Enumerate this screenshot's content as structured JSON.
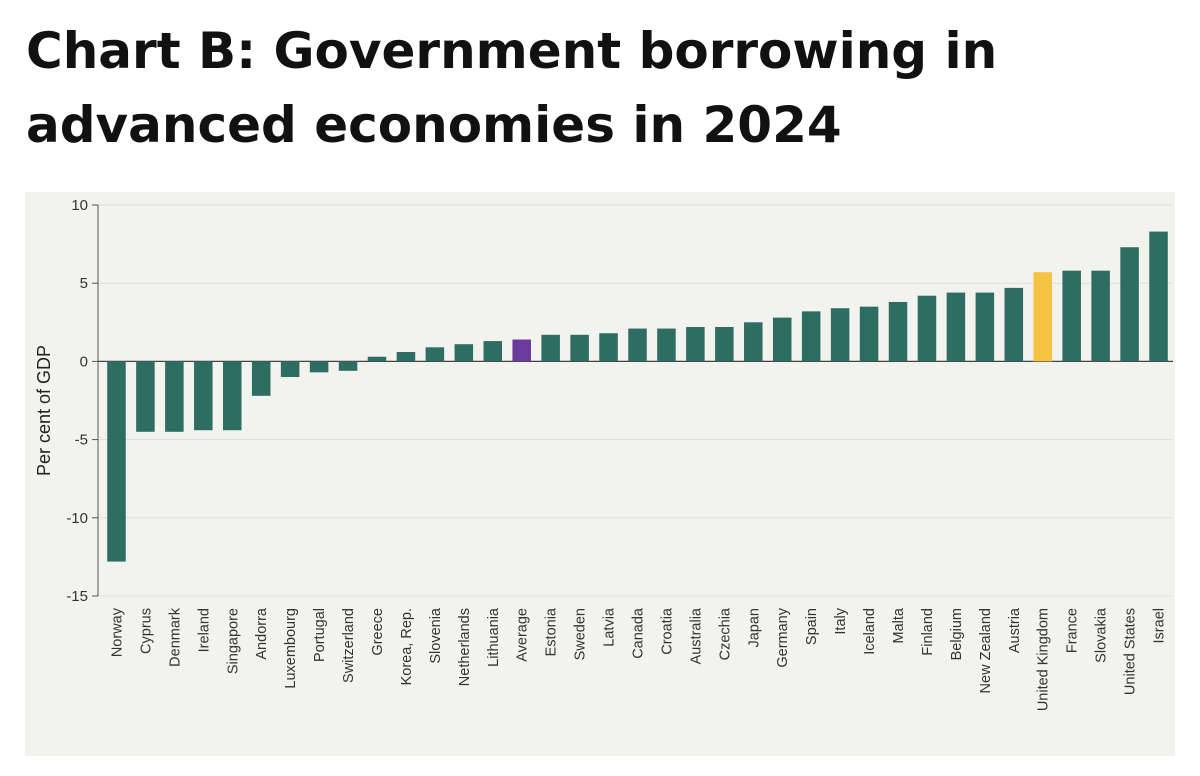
{
  "header": {
    "title": "Chart B: Government borrowing in advanced economies in 2024"
  },
  "colors": {
    "default_bar": "#2e6e62",
    "average_bar": "#6a3a9c",
    "highlight_bar": "#f5c242",
    "panel_background": "#f2f2ef",
    "gridline": "#dedede"
  },
  "chart_data": {
    "type": "bar",
    "title": "Chart B: Government borrowing in advanced economies in 2024",
    "xlabel": "",
    "ylabel": "Per cent of GDP",
    "ylim": [
      -15,
      10
    ],
    "yticks": [
      10,
      5,
      0,
      -5,
      -10,
      -15
    ],
    "grid": true,
    "legend": "none",
    "categories": [
      "Norway",
      "Cyprus",
      "Denmark",
      "Ireland",
      "Singapore",
      "Andorra",
      "Luxembourg",
      "Portugal",
      "Switzerland",
      "Greece",
      "Korea, Rep.",
      "Slovenia",
      "Netherlands",
      "Lithuania",
      "Average",
      "Estonia",
      "Sweden",
      "Latvia",
      "Canada",
      "Croatia",
      "Australia",
      "Czechia",
      "Japan",
      "Germany",
      "Spain",
      "Italy",
      "Iceland",
      "Malta",
      "Finland",
      "Belgium",
      "New Zealand",
      "Austria",
      "United Kingdom",
      "France",
      "Slovakia",
      "United States",
      "Israel"
    ],
    "values": [
      -12.8,
      -4.5,
      -4.5,
      -4.4,
      -4.4,
      -2.2,
      -1.0,
      -0.7,
      -0.6,
      0.3,
      0.6,
      0.9,
      1.1,
      1.3,
      1.4,
      1.7,
      1.7,
      1.8,
      2.1,
      2.1,
      2.2,
      2.2,
      2.5,
      2.8,
      3.2,
      3.4,
      3.5,
      3.8,
      4.2,
      4.4,
      4.4,
      4.7,
      5.7,
      5.8,
      5.8,
      7.3,
      8.3
    ],
    "highlights": {
      "Average": "average",
      "United Kingdom": "highlight"
    }
  }
}
